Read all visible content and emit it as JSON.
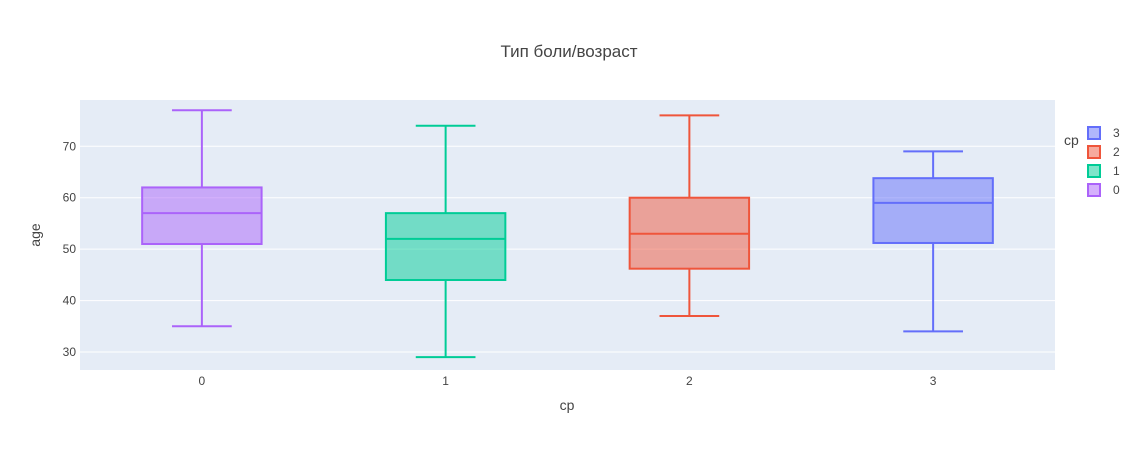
{
  "chart_data": {
    "type": "box",
    "title": "Тип боли/возраст",
    "xlabel": "cp",
    "ylabel": "age",
    "categories": [
      "0",
      "1",
      "2",
      "3"
    ],
    "ylim": [
      26.5,
      79
    ],
    "yticks": [
      30,
      40,
      50,
      60,
      70
    ],
    "grid": true,
    "legend": {
      "title": "cp",
      "position": "right",
      "order": [
        "3",
        "2",
        "1",
        "0"
      ]
    },
    "series": [
      {
        "name": "0",
        "category": "0",
        "color": "#ab63fa",
        "min": 35,
        "q1": 51,
        "median": 57,
        "q3": 62,
        "max": 77
      },
      {
        "name": "1",
        "category": "1",
        "color": "#00cc96",
        "min": 29,
        "q1": 44,
        "median": 52,
        "q3": 57,
        "max": 74
      },
      {
        "name": "2",
        "category": "2",
        "color": "#ef553b",
        "min": 37,
        "q1": 46.2,
        "median": 53,
        "q3": 60,
        "max": 76
      },
      {
        "name": "3",
        "category": "3",
        "color": "#636efa",
        "min": 34,
        "q1": 51.2,
        "median": 59,
        "q3": 63.8,
        "max": 69
      }
    ]
  }
}
